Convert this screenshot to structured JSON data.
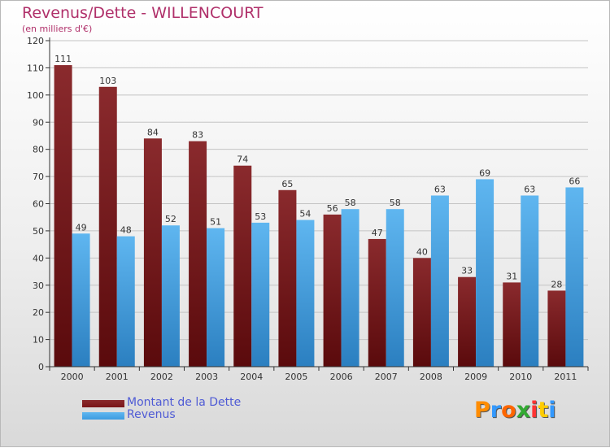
{
  "chart_data": {
    "type": "bar",
    "title": "Revenus/Dette - WILLENCOURT",
    "subtitle": "(en milliers d'€)",
    "categories": [
      "2000",
      "2001",
      "2002",
      "2003",
      "2004",
      "2005",
      "2006",
      "2007",
      "2008",
      "2009",
      "2010",
      "2011"
    ],
    "series": [
      {
        "name": "Montant de la Dette",
        "color": "#7a1518",
        "values": [
          111,
          103,
          84,
          83,
          74,
          65,
          56,
          47,
          40,
          33,
          31,
          28
        ]
      },
      {
        "name": "Revenus",
        "color": "#3d9be0",
        "values": [
          49,
          48,
          52,
          51,
          53,
          54,
          58,
          58,
          63,
          69,
          63,
          66
        ]
      }
    ],
    "ylim": [
      0,
      120
    ],
    "yticks": [
      0,
      10,
      20,
      30,
      40,
      50,
      60,
      70,
      80,
      90,
      100,
      110,
      120
    ],
    "grid": true,
    "legend_position": "bottom-left"
  },
  "logo": {
    "text": "Proxiti",
    "colors": [
      "#ff8c00",
      "#3399ff",
      "#ff6600",
      "#33aa33",
      "#ff3333",
      "#ffcc00",
      "#3399ff"
    ]
  }
}
